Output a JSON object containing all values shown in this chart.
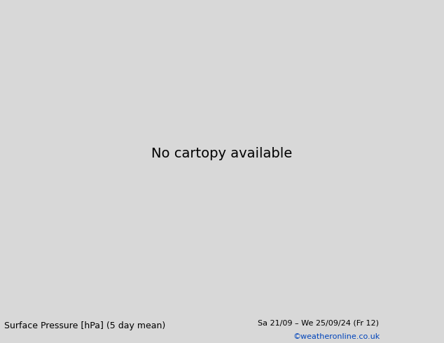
{
  "title_left": "Surface Pressure [hPa] (5 day mean)",
  "title_right": "Sa 21/09 – We 25/09/24 (Fr 12)",
  "credit": "©weatheronline.co.uk",
  "ocean_color": "#d8e8f0",
  "land_color": "#c8e6a0",
  "border_color": "#999999",
  "black_color": "#000000",
  "red_color": "#dd0000",
  "blue_color": "#0000cc",
  "footer_bg": "#d8d8d8",
  "credit_color": "#0044bb",
  "lon_min": 85,
  "lon_max": 175,
  "lat_min": -15,
  "lat_max": 55,
  "contour_lw": 1.2,
  "label_fontsize": 7.5,
  "footer_fontsize": 9,
  "credit_fontsize": 8
}
